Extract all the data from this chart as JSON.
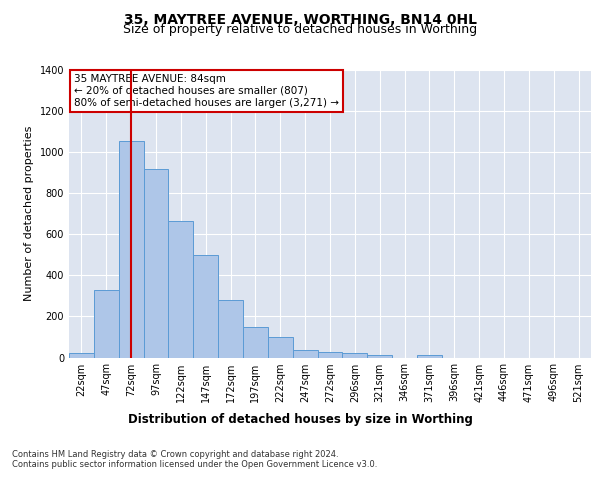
{
  "title": "35, MAYTREE AVENUE, WORTHING, BN14 0HL",
  "subtitle": "Size of property relative to detached houses in Worthing",
  "xlabel": "Distribution of detached houses by size in Worthing",
  "ylabel": "Number of detached properties",
  "bin_labels": [
    "22sqm",
    "47sqm",
    "72sqm",
    "97sqm",
    "122sqm",
    "147sqm",
    "172sqm",
    "197sqm",
    "222sqm",
    "247sqm",
    "272sqm",
    "296sqm",
    "321sqm",
    "346sqm",
    "371sqm",
    "396sqm",
    "421sqm",
    "446sqm",
    "471sqm",
    "496sqm",
    "521sqm"
  ],
  "bar_values": [
    20,
    330,
    1055,
    920,
    665,
    500,
    278,
    150,
    100,
    38,
    25,
    20,
    13,
    0,
    12,
    0,
    0,
    0,
    0,
    0,
    0
  ],
  "bar_color": "#aec6e8",
  "bar_edge_color": "#5b9bd5",
  "vline_x": 2,
  "vline_color": "#cc0000",
  "annotation_text": "35 MAYTREE AVENUE: 84sqm\n← 20% of detached houses are smaller (807)\n80% of semi-detached houses are larger (3,271) →",
  "annotation_box_color": "#ffffff",
  "annotation_box_edge_color": "#cc0000",
  "ylim": [
    0,
    1400
  ],
  "yticks": [
    0,
    200,
    400,
    600,
    800,
    1000,
    1200,
    1400
  ],
  "bg_color": "#dde4f0",
  "footer_text": "Contains HM Land Registry data © Crown copyright and database right 2024.\nContains public sector information licensed under the Open Government Licence v3.0.",
  "title_fontsize": 10,
  "subtitle_fontsize": 9,
  "xlabel_fontsize": 8.5,
  "ylabel_fontsize": 8,
  "tick_fontsize": 7,
  "annotation_fontsize": 7.5,
  "footer_fontsize": 6
}
